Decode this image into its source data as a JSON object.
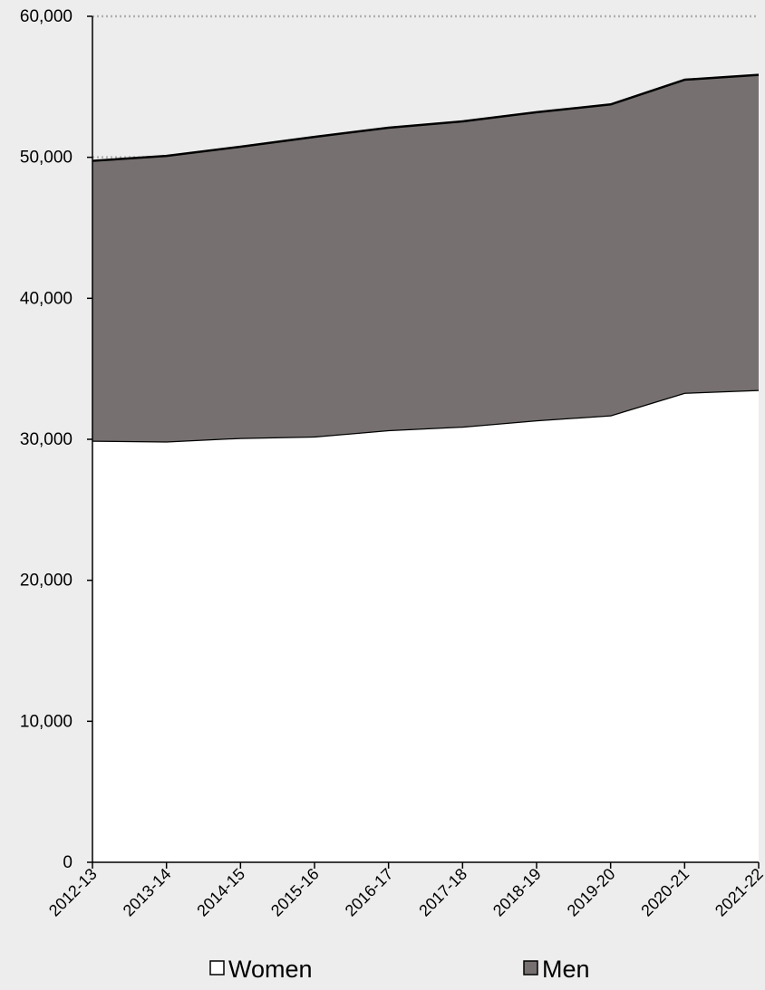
{
  "chart_data": {
    "type": "area",
    "stacked": true,
    "title": "",
    "xlabel": "",
    "ylabel": "",
    "categories": [
      "2012-13",
      "2013-14",
      "2014-15",
      "2015-16",
      "2016-17",
      "2017-18",
      "2018-19",
      "2019-20",
      "2020-21",
      "2021-22"
    ],
    "series": [
      {
        "name": "Women",
        "values": [
          29900,
          29850,
          30100,
          30200,
          30650,
          30900,
          31350,
          31700,
          33300,
          33500
        ],
        "color": "#ffffff"
      },
      {
        "name": "Men",
        "values": [
          19850,
          20250,
          20650,
          21250,
          21450,
          21650,
          21850,
          22050,
          22200,
          22350
        ],
        "color": "#767170"
      }
    ],
    "ylim": [
      0,
      60000
    ],
    "yticks": [
      "0",
      "10,000",
      "20,000",
      "30,000",
      "40,000",
      "50,000",
      "60,000"
    ],
    "grid": "dotted horizontal",
    "legend": {
      "position": "bottom",
      "entries": [
        "Women",
        "Men"
      ]
    }
  }
}
